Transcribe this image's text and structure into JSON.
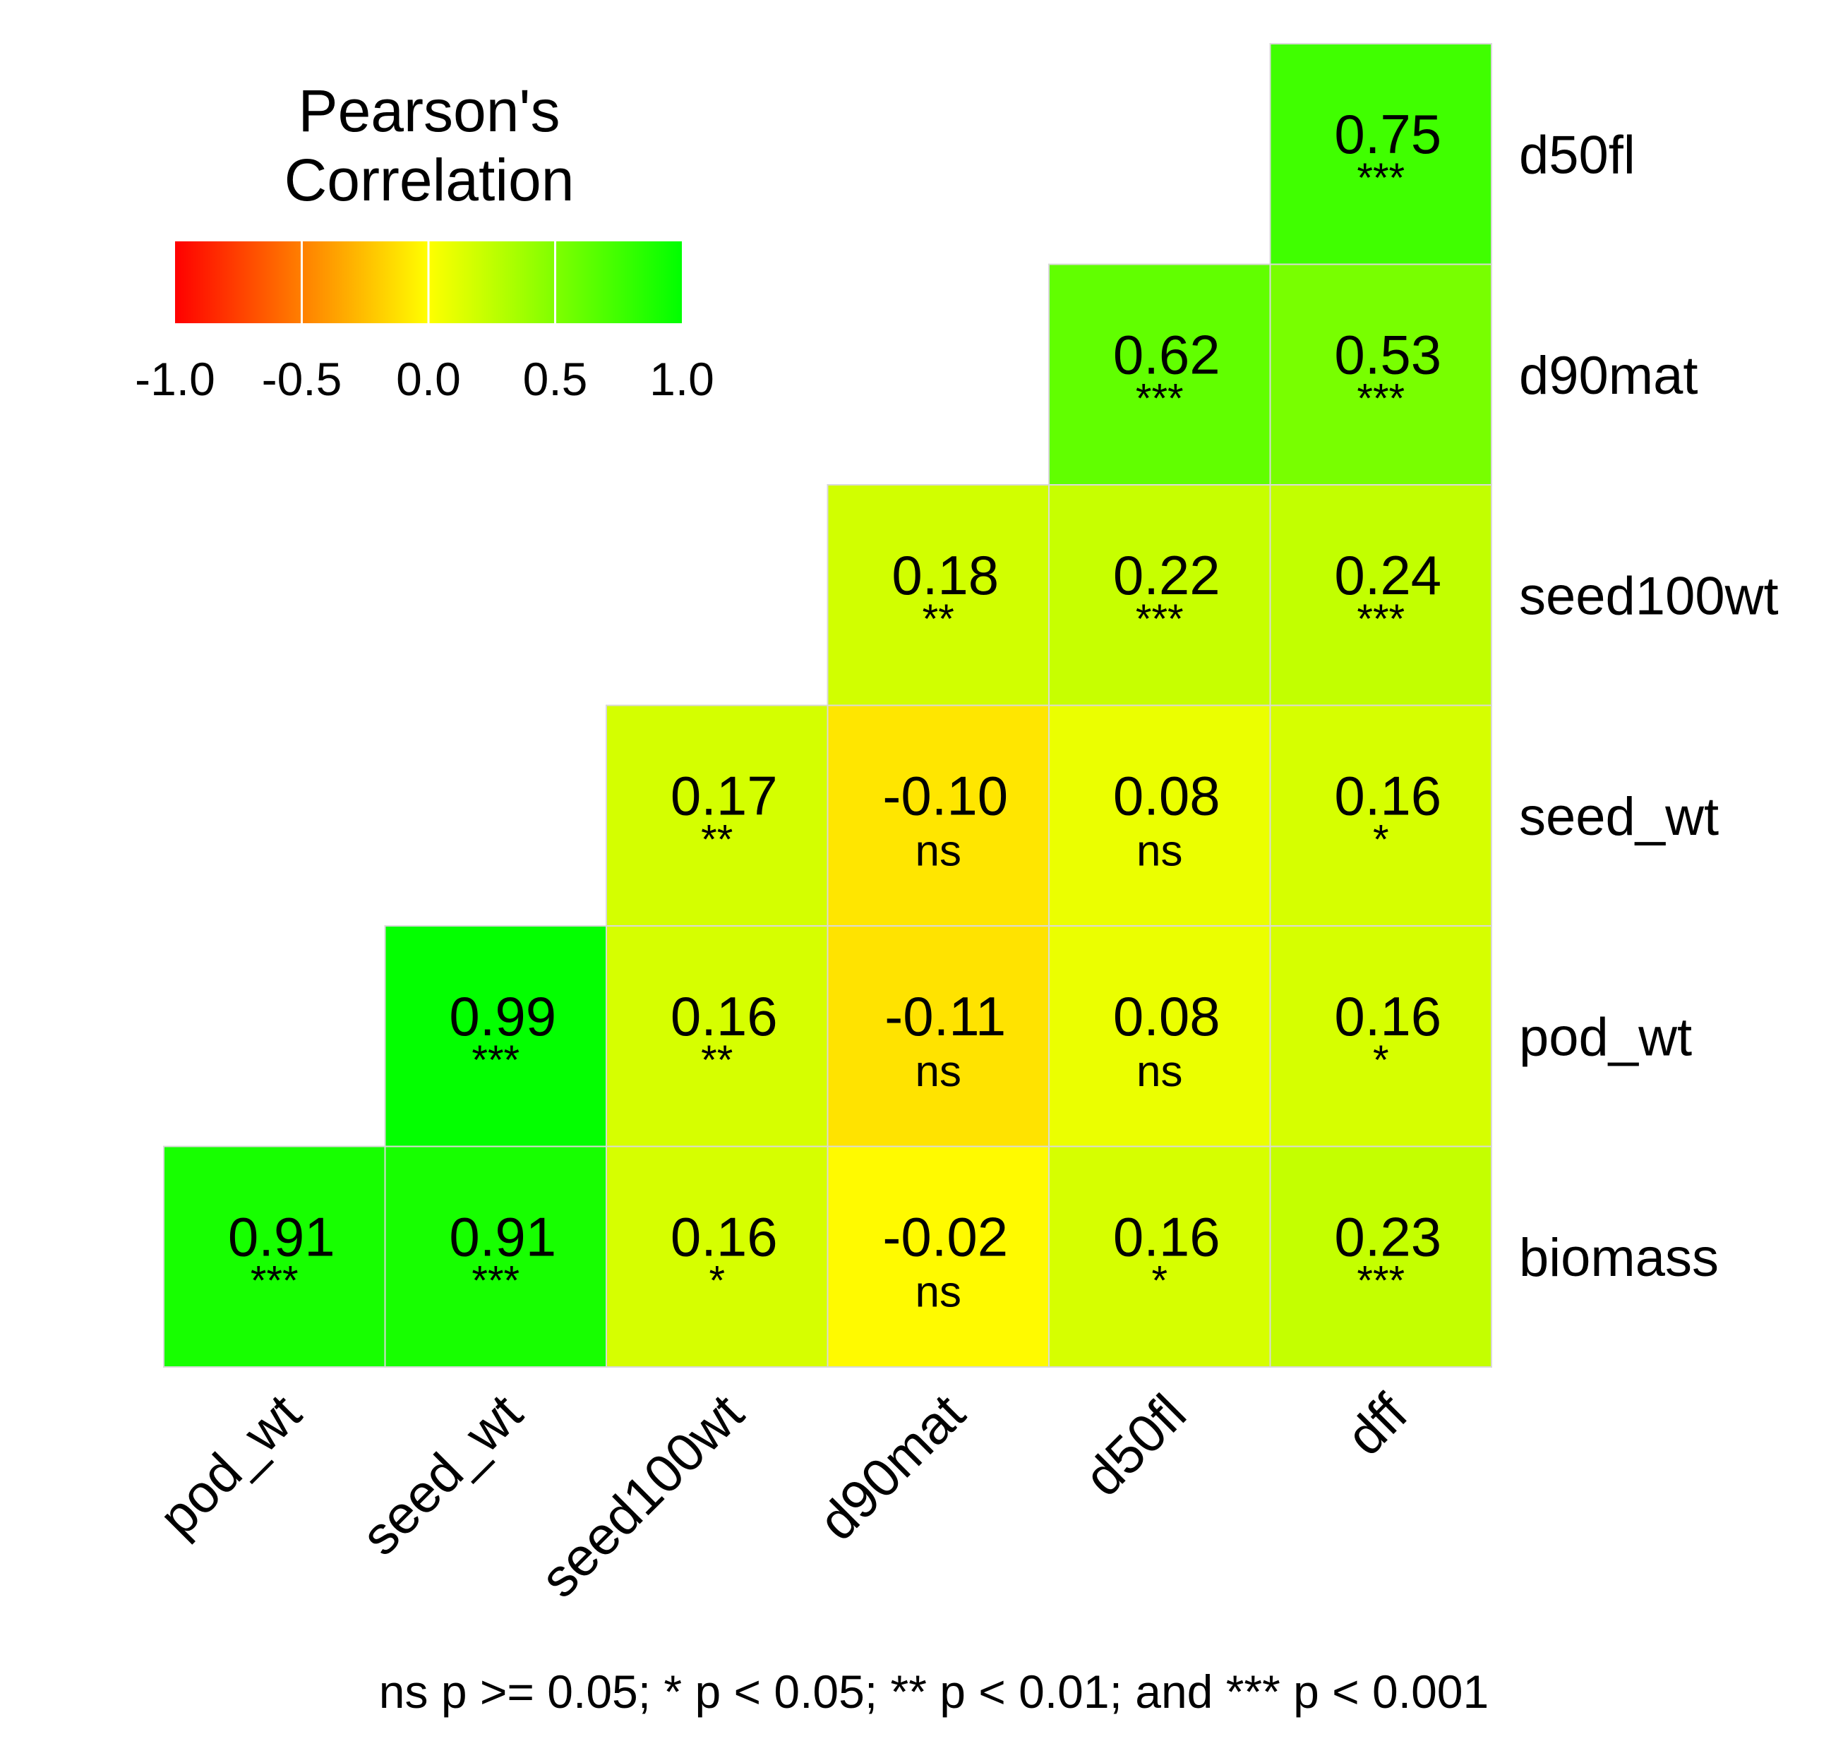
{
  "chart_data": {
    "type": "heatmap",
    "title": "",
    "legend": {
      "title": [
        "Pearson's",
        "Correlation"
      ],
      "ticks": [
        "-1.0",
        "-0.5",
        "0.0",
        "0.5",
        "1.0"
      ],
      "tick_values": [
        -1.0,
        -0.5,
        0.0,
        0.5,
        1.0
      ],
      "range": [
        -1.0,
        1.0
      ],
      "colors": {
        "low": "#ff0000",
        "mid": "#ffff00",
        "high": "#00ff00"
      },
      "placement": "top-left"
    },
    "x_labels": [
      "pod_wt",
      "seed_wt",
      "seed100wt",
      "d90mat",
      "d50fl",
      "dff"
    ],
    "y_labels": [
      "d50fl",
      "d90mat",
      "seed100wt",
      "seed_wt",
      "pod_wt",
      "biomass"
    ],
    "cells": [
      {
        "row": "d50fl",
        "col": "dff",
        "value": 0.75,
        "label": "0.75",
        "sig": "***"
      },
      {
        "row": "d90mat",
        "col": "d50fl",
        "value": 0.62,
        "label": "0.62",
        "sig": "***"
      },
      {
        "row": "d90mat",
        "col": "dff",
        "value": 0.53,
        "label": "0.53",
        "sig": "***"
      },
      {
        "row": "seed100wt",
        "col": "d90mat",
        "value": 0.18,
        "label": "0.18",
        "sig": "**"
      },
      {
        "row": "seed100wt",
        "col": "d50fl",
        "value": 0.22,
        "label": "0.22",
        "sig": "***"
      },
      {
        "row": "seed100wt",
        "col": "dff",
        "value": 0.24,
        "label": "0.24",
        "sig": "***"
      },
      {
        "row": "seed_wt",
        "col": "seed100wt",
        "value": 0.17,
        "label": "0.17",
        "sig": "**"
      },
      {
        "row": "seed_wt",
        "col": "d90mat",
        "value": -0.1,
        "label": "-0.10",
        "sig": "ns"
      },
      {
        "row": "seed_wt",
        "col": "d50fl",
        "value": 0.08,
        "label": "0.08",
        "sig": "ns"
      },
      {
        "row": "seed_wt",
        "col": "dff",
        "value": 0.16,
        "label": "0.16",
        "sig": "*"
      },
      {
        "row": "pod_wt",
        "col": "seed_wt",
        "value": 0.99,
        "label": "0.99",
        "sig": "***"
      },
      {
        "row": "pod_wt",
        "col": "seed100wt",
        "value": 0.16,
        "label": "0.16",
        "sig": "**"
      },
      {
        "row": "pod_wt",
        "col": "d90mat",
        "value": -0.11,
        "label": "-0.11",
        "sig": "ns"
      },
      {
        "row": "pod_wt",
        "col": "d50fl",
        "value": 0.08,
        "label": "0.08",
        "sig": "ns"
      },
      {
        "row": "pod_wt",
        "col": "dff",
        "value": 0.16,
        "label": "0.16",
        "sig": "*"
      },
      {
        "row": "biomass",
        "col": "pod_wt",
        "value": 0.91,
        "label": "0.91",
        "sig": "***"
      },
      {
        "row": "biomass",
        "col": "seed_wt",
        "value": 0.91,
        "label": "0.91",
        "sig": "***"
      },
      {
        "row": "biomass",
        "col": "seed100wt",
        "value": 0.16,
        "label": "0.16",
        "sig": "*"
      },
      {
        "row": "biomass",
        "col": "d90mat",
        "value": -0.02,
        "label": "-0.02",
        "sig": "ns"
      },
      {
        "row": "biomass",
        "col": "d50fl",
        "value": 0.16,
        "label": "0.16",
        "sig": "*"
      },
      {
        "row": "biomass",
        "col": "dff",
        "value": 0.23,
        "label": "0.23",
        "sig": "***"
      }
    ],
    "footnote": "ns p >= 0.05; * p < 0.05; ** p < 0.01; and *** p < 0.001",
    "grid_line_color": "#d9d9d9",
    "background": "#ffffff"
  }
}
